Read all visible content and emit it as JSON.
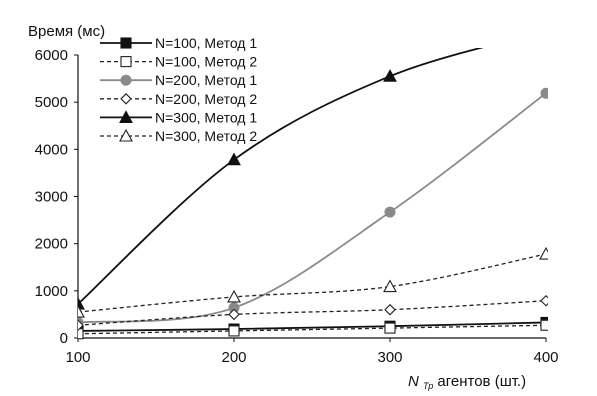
{
  "chart_data": {
    "type": "line",
    "x": [
      100,
      200,
      300,
      400
    ],
    "xlim": [
      100,
      400
    ],
    "ylim": [
      0,
      6000
    ],
    "yticks": [
      0,
      1000,
      2000,
      3000,
      4000,
      5000,
      6000
    ],
    "xticks": [
      100,
      200,
      300,
      400
    ],
    "ylabel": "Время (мс)",
    "xlabel": {
      "italic": "N",
      "sub": "Тр",
      "rest": " агентов (шт.)"
    },
    "legend_position": "top-left",
    "grid": false,
    "series": [
      {
        "name": "N=100, Метод 1",
        "values": [
          150,
          190,
          250,
          330
        ],
        "color": "#111111",
        "dash": "solid",
        "marker": "filled-square"
      },
      {
        "name": "N=100, Метод 2",
        "values": [
          90,
          150,
          210,
          270
        ],
        "color": "#222222",
        "dash": "dashed",
        "marker": "open-square"
      },
      {
        "name": "N=200, Метод 1",
        "values": [
          330,
          640,
          2670,
          5190
        ],
        "color": "#8a8a8a",
        "dash": "solid",
        "marker": "filled-circle"
      },
      {
        "name": "N=200, Метод 2",
        "values": [
          270,
          500,
          600,
          790
        ],
        "color": "#222222",
        "dash": "dashed",
        "marker": "open-diamond"
      },
      {
        "name": "N=300, Метод 1",
        "values": [
          720,
          3780,
          5550,
          6500
        ],
        "color": "#111111",
        "dash": "solid",
        "marker": "filled-triangle"
      },
      {
        "name": "N=300, Метод 2",
        "values": [
          550,
          870,
          1090,
          1780
        ],
        "color": "#222222",
        "dash": "dashed",
        "marker": "open-triangle"
      }
    ]
  }
}
